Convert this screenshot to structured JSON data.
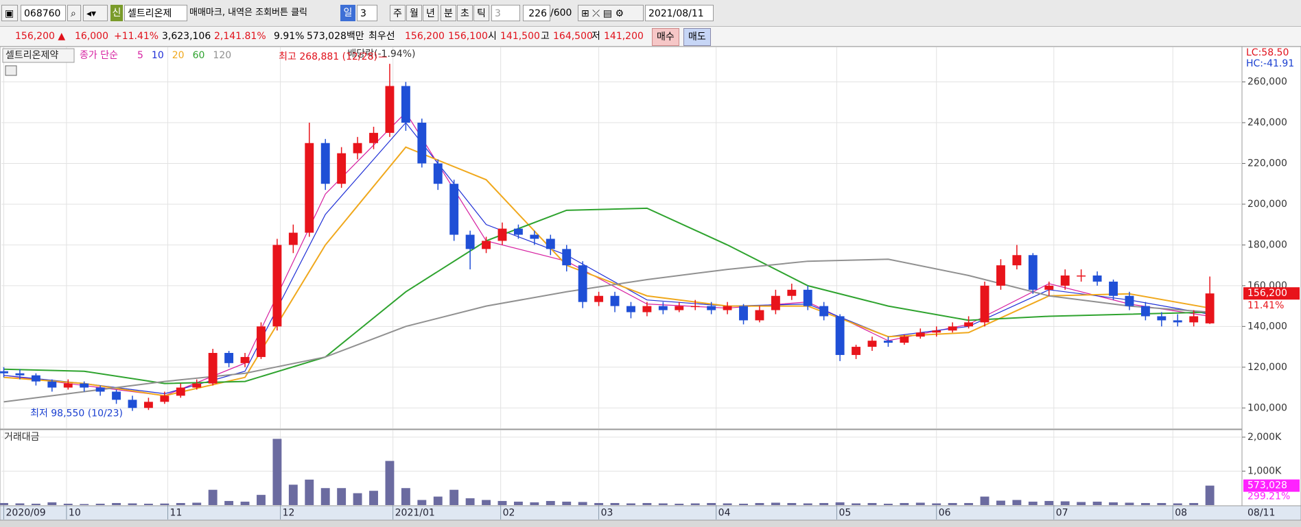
{
  "toolbar": {
    "code": "068760",
    "badge": "신",
    "name": "셀트리온제",
    "note": "매매마크, 내역은 조회버튼 클릭",
    "periods": [
      "일",
      "주",
      "월",
      "년",
      "분",
      "초",
      "틱"
    ],
    "count1": "3",
    "count2": "3",
    "shown": "226",
    "max": "/600",
    "date": "2021/08/11"
  },
  "quote": {
    "price": "156,200 ▲",
    "change": "16,000",
    "rate": "+11.41%",
    "volume": "3,623,106",
    "volume_ratio": "2,141.81%",
    "turnover_rate": "9.91%",
    "trade_value": "573,028백만",
    "best": "최우선",
    "ask": "156,200",
    "bid": "156,100",
    "open_label": "시",
    "open": "141,500",
    "high_label": "고",
    "high": "164,500",
    "low_label": "저",
    "low": "141,200",
    "buy": "매수",
    "sell": "매도"
  },
  "chart_data": {
    "type": "candlestick",
    "stock_label": "셀트리온제약",
    "ma_label": "종가 단순",
    "volume_title": "거래대금",
    "annotations": {
      "dividend": "배당락(-1.94%)",
      "max": "최고 268,881 (12/28)",
      "min": "최저 98,550 (10/23)",
      "lc": "LC:58.50",
      "hc": "HC:-41.91"
    },
    "price_tag_label": "156,200",
    "price_tag_change": "11.41%",
    "volume_tag_label": "573,028",
    "volume_tag_ratio": "299.21%",
    "xlim": [
      -0.15,
      77
    ],
    "xticks": [
      {
        "value": 0,
        "label": "2020/09"
      },
      {
        "value": 3.9,
        "label": "10"
      },
      {
        "value": 10.2,
        "label": "11"
      },
      {
        "value": 17.2,
        "label": "12"
      },
      {
        "value": 24.2,
        "label": "2021/01"
      },
      {
        "value": 30.9,
        "label": "02"
      },
      {
        "value": 37,
        "label": "03"
      },
      {
        "value": 44.3,
        "label": "04"
      },
      {
        "value": 51.8,
        "label": "05"
      },
      {
        "value": 58,
        "label": "06"
      },
      {
        "value": 65.3,
        "label": "07"
      },
      {
        "value": 72.7,
        "label": "08"
      }
    ],
    "end_label": "08/11",
    "ylim": [
      90000,
      277000
    ],
    "yticks": [
      {
        "value": 100000,
        "label": "100,000"
      },
      {
        "value": 120000,
        "label": "120,000"
      },
      {
        "value": 140000,
        "label": "140,000"
      },
      {
        "value": 160000,
        "label": "160,000"
      },
      {
        "value": 180000,
        "label": "180,000"
      },
      {
        "value": 200000,
        "label": "200,000"
      },
      {
        "value": 220000,
        "label": "220,000"
      },
      {
        "value": 240000,
        "label": "240,000"
      },
      {
        "value": 260000,
        "label": "260,000"
      }
    ],
    "vlim": [
      0,
      2200000
    ],
    "vticks": [
      {
        "value": 1000000,
        "label": "1,000K"
      },
      {
        "value": 2000000,
        "label": "2,000K"
      }
    ],
    "grid": true,
    "up_color": "#e8141b",
    "down_color": "#1f4fd6",
    "volume_color": "#6b6ba0",
    "open": [
      118000,
      117000,
      116000,
      113000,
      110000,
      112000,
      110000,
      108000,
      104000,
      100000,
      103000,
      106000,
      110000,
      112000,
      127000,
      122000,
      125000,
      140000,
      180000,
      186000,
      230000,
      210000,
      225000,
      230000,
      235000,
      258000,
      240000,
      220000,
      210000,
      185000,
      178000,
      182000,
      188000,
      185000,
      183000,
      178000,
      170000,
      152000,
      155000,
      150000,
      147000,
      150000,
      148000,
      150000,
      150000,
      148000,
      150000,
      143000,
      148000,
      155000,
      158000,
      150000,
      145000,
      126000,
      130000,
      133000,
      132000,
      135000,
      137000,
      138000,
      140000,
      142000,
      160000,
      170000,
      175000,
      158000,
      160000,
      165000,
      165000,
      162000,
      155000,
      150000,
      145000,
      143000,
      142000,
      141500
    ],
    "high": [
      120000,
      119000,
      117000,
      114000,
      114000,
      113000,
      111000,
      109000,
      106000,
      105000,
      108000,
      112000,
      114000,
      129000,
      128000,
      127000,
      142000,
      183000,
      190000,
      240000,
      232000,
      228000,
      233000,
      238000,
      268881,
      260000,
      242000,
      222000,
      212000,
      187000,
      184000,
      191000,
      190000,
      187000,
      185000,
      180000,
      172000,
      157000,
      157000,
      152000,
      152000,
      152000,
      152000,
      153000,
      152000,
      152000,
      151000,
      150000,
      158000,
      161000,
      160000,
      152000,
      146000,
      131000,
      135000,
      135000,
      136000,
      139000,
      140000,
      142000,
      145000,
      162000,
      173000,
      180000,
      176000,
      162000,
      168000,
      168000,
      167000,
      163000,
      157000,
      152000,
      147000,
      146000,
      148000,
      164500
    ],
    "low": [
      115000,
      114000,
      111000,
      108000,
      109000,
      108000,
      106000,
      102000,
      98550,
      99000,
      102000,
      105000,
      109000,
      111000,
      120000,
      120000,
      124000,
      138000,
      176000,
      184000,
      207000,
      208000,
      222000,
      227000,
      233000,
      236000,
      218000,
      207000,
      182000,
      168000,
      176000,
      180000,
      183000,
      180000,
      175000,
      167000,
      149000,
      150000,
      147000,
      144000,
      145000,
      146000,
      147000,
      148000,
      146000,
      146000,
      141000,
      142000,
      146000,
      153000,
      148000,
      143000,
      123000,
      124000,
      128000,
      130000,
      131000,
      134000,
      135000,
      137000,
      139000,
      140000,
      158000,
      168000,
      156000,
      155000,
      158000,
      162000,
      160000,
      153000,
      148000,
      143000,
      140000,
      140000,
      140000,
      141200
    ],
    "close": [
      117000,
      116000,
      113000,
      110000,
      112000,
      110000,
      108000,
      104000,
      100000,
      103000,
      106000,
      110000,
      112000,
      127000,
      122000,
      125000,
      140000,
      180000,
      186000,
      230000,
      210000,
      225000,
      230000,
      235000,
      258000,
      240000,
      220000,
      210000,
      185000,
      178000,
      182000,
      188000,
      185000,
      183000,
      178000,
      170000,
      152000,
      155000,
      150000,
      147000,
      150000,
      148000,
      150000,
      150000,
      148000,
      150000,
      143000,
      148000,
      155000,
      158000,
      150000,
      145000,
      126000,
      130000,
      133000,
      132000,
      135000,
      137000,
      138000,
      140000,
      142000,
      160000,
      170000,
      175000,
      158000,
      160000,
      165000,
      165000,
      162000,
      155000,
      150000,
      145000,
      143000,
      142000,
      145000,
      156200
    ],
    "volume": [
      60000,
      50000,
      40000,
      80000,
      40000,
      30000,
      40000,
      60000,
      50000,
      40000,
      45000,
      60000,
      70000,
      450000,
      120000,
      100000,
      300000,
      1950000,
      600000,
      750000,
      500000,
      500000,
      350000,
      420000,
      1300000,
      500000,
      150000,
      250000,
      450000,
      200000,
      150000,
      120000,
      100000,
      80000,
      120000,
      100000,
      90000,
      60000,
      60000,
      50000,
      60000,
      50000,
      40000,
      50000,
      60000,
      50000,
      40000,
      60000,
      70000,
      60000,
      50000,
      60000,
      80000,
      50000,
      60000,
      40000,
      60000,
      70000,
      50000,
      60000,
      60000,
      250000,
      130000,
      150000,
      100000,
      120000,
      110000,
      90000,
      100000,
      80000,
      70000,
      60000,
      60000,
      50000,
      60000,
      573028
    ],
    "ma_x": [
      0,
      5,
      10,
      15,
      20,
      25,
      30,
      35,
      40,
      45,
      50,
      55,
      60,
      65,
      70,
      75
    ],
    "series": [
      {
        "name": "5",
        "color": "#d61fa0",
        "values": [
          116000,
          111000,
          106000,
          122000,
          205000,
          245000,
          182000,
          172000,
          151000,
          149000,
          152000,
          133000,
          141000,
          161000,
          151000,
          145000
        ]
      },
      {
        "name": "10",
        "color": "#1f2fd6",
        "values": [
          116000,
          112000,
          107000,
          118000,
          195000,
          240000,
          190000,
          175000,
          153000,
          150000,
          151000,
          135000,
          140000,
          158000,
          153000,
          146000
        ]
      },
      {
        "name": "20",
        "color": "#f0a81c",
        "values": [
          115000,
          112000,
          106000,
          115000,
          180000,
          228000,
          212000,
          170000,
          155000,
          150000,
          150000,
          135000,
          137000,
          155000,
          156000,
          149000
        ]
      },
      {
        "name": "60",
        "color": "#2ea32e",
        "values": [
          119000,
          118000,
          112000,
          113000,
          125000,
          157000,
          182000,
          197000,
          198000,
          180000,
          160000,
          150000,
          143000,
          145000,
          146000,
          147000
        ]
      },
      {
        "name": "120",
        "color": "#909090",
        "values": [
          103000,
          108000,
          113000,
          117000,
          125000,
          140000,
          150000,
          157000,
          163000,
          168000,
          172000,
          173000,
          165000,
          155000,
          150000,
          147000
        ]
      }
    ]
  }
}
